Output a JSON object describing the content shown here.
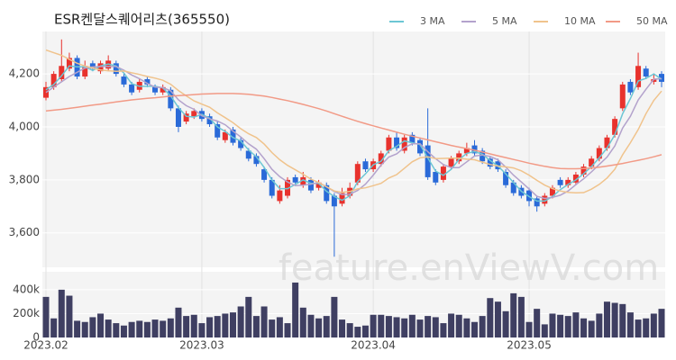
{
  "chart_data": [
    {
      "type": "candlestick",
      "title": "ESR켄달스퀘어리츠(365550)",
      "watermark": "feature.enViewV.com",
      "categories": [
        "2023.02",
        null,
        null,
        null,
        null,
        null,
        null,
        null,
        null,
        null,
        null,
        null,
        null,
        null,
        null,
        null,
        null,
        null,
        null,
        null,
        "2023.03",
        null,
        null,
        null,
        null,
        null,
        null,
        null,
        null,
        null,
        null,
        null,
        null,
        null,
        null,
        null,
        null,
        null,
        null,
        null,
        null,
        null,
        "2023.04",
        null,
        null,
        null,
        null,
        null,
        null,
        null,
        null,
        null,
        null,
        null,
        null,
        null,
        null,
        null,
        null,
        null,
        null,
        null,
        "2023.05",
        null,
        null,
        null,
        null,
        null,
        null,
        null,
        null,
        null,
        null,
        null,
        null,
        null,
        null,
        null,
        null,
        null
      ],
      "open": [
        4110,
        4150,
        4180,
        4220,
        4260,
        4190,
        4240,
        4210,
        4220,
        4240,
        4190,
        4160,
        4140,
        4180,
        4150,
        4130,
        4140,
        4070,
        4020,
        4040,
        4060,
        4040,
        4010,
        3950,
        3990,
        3950,
        3910,
        3890,
        3840,
        3800,
        3720,
        3740,
        3810,
        3780,
        3800,
        3770,
        3780,
        3740,
        3710,
        3740,
        3790,
        3870,
        3840,
        3860,
        3910,
        3960,
        3910,
        3970,
        3950,
        3930,
        3830,
        3800,
        3850,
        3870,
        3900,
        3930,
        3910,
        3880,
        3870,
        3830,
        3790,
        3770,
        3760,
        3730,
        3710,
        3740,
        3800,
        3780,
        3790,
        3820,
        3850,
        3880,
        3920,
        3970,
        4070,
        4170,
        4150,
        4220,
        4170,
        4200
      ],
      "high": [
        4170,
        4210,
        4330,
        4280,
        4270,
        4250,
        4250,
        4250,
        4270,
        4250,
        4200,
        4170,
        4180,
        4190,
        4160,
        4160,
        4150,
        4080,
        4060,
        4070,
        4070,
        4050,
        4020,
        3990,
        4000,
        3960,
        3920,
        3900,
        3850,
        3810,
        3780,
        3810,
        3820,
        3830,
        3810,
        3800,
        3790,
        3750,
        3770,
        3790,
        3870,
        3880,
        3880,
        3910,
        3970,
        3980,
        3970,
        3980,
        3960,
        4070,
        3840,
        3860,
        3890,
        3910,
        3940,
        3950,
        3920,
        3890,
        3880,
        3840,
        3800,
        3780,
        3770,
        3740,
        3750,
        3780,
        3810,
        3810,
        3830,
        3860,
        3890,
        3930,
        3970,
        4040,
        4170,
        4180,
        4280,
        4230,
        4200,
        4210
      ],
      "low": [
        4100,
        4140,
        4170,
        4210,
        4180,
        4180,
        4210,
        4200,
        4210,
        4190,
        4150,
        4120,
        4130,
        4150,
        4120,
        4120,
        4060,
        3980,
        4010,
        4030,
        4020,
        4000,
        3950,
        3940,
        3930,
        3910,
        3870,
        3850,
        3790,
        3730,
        3710,
        3730,
        3780,
        3770,
        3750,
        3760,
        3710,
        3510,
        3700,
        3730,
        3780,
        3830,
        3830,
        3850,
        3900,
        3910,
        3900,
        3930,
        3890,
        3800,
        3780,
        3790,
        3840,
        3860,
        3890,
        3890,
        3860,
        3840,
        3830,
        3770,
        3740,
        3730,
        3700,
        3680,
        3700,
        3730,
        3770,
        3770,
        3780,
        3810,
        3840,
        3870,
        3910,
        3960,
        4060,
        4120,
        4140,
        4180,
        4160,
        4150
      ],
      "close": [
        4150,
        4200,
        4230,
        4260,
        4190,
        4230,
        4220,
        4240,
        4250,
        4200,
        4160,
        4130,
        4170,
        4160,
        4130,
        4150,
        4070,
        4000,
        4050,
        4060,
        4030,
        4010,
        3960,
        3980,
        3940,
        3920,
        3880,
        3860,
        3800,
        3740,
        3760,
        3800,
        3790,
        3810,
        3760,
        3790,
        3720,
        3700,
        3750,
        3770,
        3860,
        3840,
        3870,
        3900,
        3960,
        3920,
        3960,
        3940,
        3900,
        3810,
        3790,
        3850,
        3880,
        3900,
        3920,
        3900,
        3870,
        3850,
        3840,
        3780,
        3750,
        3740,
        3720,
        3700,
        3740,
        3770,
        3780,
        3800,
        3820,
        3850,
        3880,
        3920,
        3960,
        4030,
        4160,
        4130,
        4230,
        4190,
        4180,
        4170
      ],
      "up_color": "#e8322d",
      "down_color": "#2a6ad8",
      "series": [
        {
          "name": "3 MA",
          "color": "#6cc6d4",
          "values": [
            4140,
            4160,
            4193,
            4230,
            4227,
            4227,
            4213,
            4230,
            4237,
            4230,
            4203,
            4163,
            4153,
            4153,
            4153,
            4147,
            4117,
            4073,
            4040,
            4037,
            4047,
            4033,
            4000,
            3983,
            3960,
            3947,
            3913,
            3887,
            3847,
            3800,
            3767,
            3767,
            3783,
            3800,
            3787,
            3787,
            3757,
            3737,
            3723,
            3740,
            3793,
            3823,
            3857,
            3870,
            3910,
            3927,
            3947,
            3940,
            3933,
            3883,
            3833,
            3817,
            3840,
            3877,
            3900,
            3907,
            3897,
            3873,
            3853,
            3823,
            3790,
            3757,
            3737,
            3720,
            3720,
            3737,
            3763,
            3783,
            3800,
            3823,
            3850,
            3883,
            3920,
            3970,
            4050,
            4107,
            4173,
            4183,
            4200,
            4180
          ]
        },
        {
          "name": "5 MA",
          "color": "#b3a2cc",
          "values": [
            4130,
            4150,
            4170,
            4190,
            4206,
            4222,
            4226,
            4228,
            4228,
            4228,
            4214,
            4196,
            4182,
            4164,
            4150,
            4148,
            4136,
            4102,
            4080,
            4066,
            4042,
            4030,
            4022,
            4008,
            3984,
            3962,
            3936,
            3916,
            3880,
            3840,
            3812,
            3792,
            3778,
            3780,
            3784,
            3790,
            3774,
            3756,
            3744,
            3746,
            3760,
            3784,
            3818,
            3856,
            3886,
            3898,
            3922,
            3936,
            3936,
            3906,
            3880,
            3858,
            3846,
            3846,
            3868,
            3890,
            3894,
            3888,
            3876,
            3848,
            3818,
            3792,
            3766,
            3738,
            3730,
            3734,
            3742,
            3758,
            3782,
            3804,
            3830,
            3858,
            3886,
            3928,
            3996,
            4040,
            4102,
            4142,
            4180,
            4182
          ]
        },
        {
          "name": "10 MA",
          "color": "#f0c38c",
          "values": [
            4290,
            4280,
            4270,
            4255,
            4240,
            4230,
            4222,
            4215,
            4212,
            4210,
            4211,
            4204,
            4198,
            4190,
            4184,
            4176,
            4161,
            4137,
            4117,
            4098,
            4086,
            4074,
            4053,
            4035,
            4016,
            3993,
            3974,
            3960,
            3935,
            3903,
            3876,
            3855,
            3838,
            3821,
            3803,
            3790,
            3774,
            3758,
            3753,
            3756,
            3766,
            3770,
            3778,
            3787,
            3807,
            3820,
            3844,
            3868,
            3883,
            3887,
            3880,
            3881,
            3882,
            3882,
            3878,
            3876,
            3867,
            3858,
            3852,
            3849,
            3845,
            3834,
            3818,
            3798,
            3780,
            3767,
            3758,
            3753,
            3751,
            3752,
            3765,
            3783,
            3807,
            3840,
            3895,
            3940,
            3990,
            4050,
            4100,
            4135
          ]
        },
        {
          "name": "50 MA",
          "color": "#f29a86",
          "values": [
            4060,
            4063,
            4066,
            4070,
            4074,
            4078,
            4082,
            4086,
            4090,
            4094,
            4098,
            4102,
            4105,
            4108,
            4110,
            4113,
            4116,
            4118,
            4120,
            4122,
            4124,
            4125,
            4126,
            4126,
            4126,
            4125,
            4123,
            4120,
            4116,
            4111,
            4105,
            4099,
            4092,
            4085,
            4077,
            4069,
            4060,
            4050,
            4040,
            4030,
            4021,
            4012,
            4004,
            3996,
            3988,
            3980,
            3972,
            3965,
            3958,
            3951,
            3944,
            3937,
            3930,
            3924,
            3918,
            3912,
            3905,
            3898,
            3891,
            3884,
            3877,
            3870,
            3863,
            3857,
            3851,
            3846,
            3843,
            3842,
            3842,
            3843,
            3845,
            3848,
            3852,
            3857,
            3862,
            3868,
            3874,
            3880,
            3887,
            3895
          ]
        }
      ],
      "ylim": [
        3470,
        4360
      ],
      "yticks": [
        {
          "value": 3600,
          "label": "3,600"
        },
        {
          "value": 3800,
          "label": "3,800"
        },
        {
          "value": 4000,
          "label": "4,000"
        },
        {
          "value": 4200,
          "label": "4,200"
        }
      ],
      "grid": true
    },
    {
      "type": "bar",
      "values": [
        340000,
        160000,
        400000,
        350000,
        140000,
        130000,
        170000,
        200000,
        150000,
        120000,
        100000,
        130000,
        140000,
        130000,
        150000,
        140000,
        160000,
        250000,
        180000,
        190000,
        120000,
        170000,
        180000,
        200000,
        210000,
        260000,
        340000,
        180000,
        260000,
        150000,
        170000,
        120000,
        460000,
        250000,
        190000,
        160000,
        180000,
        340000,
        150000,
        120000,
        90000,
        100000,
        190000,
        190000,
        180000,
        170000,
        160000,
        190000,
        150000,
        180000,
        170000,
        120000,
        200000,
        190000,
        160000,
        130000,
        180000,
        330000,
        300000,
        220000,
        370000,
        340000,
        130000,
        240000,
        110000,
        200000,
        190000,
        180000,
        210000,
        160000,
        140000,
        200000,
        300000,
        290000,
        280000,
        210000,
        150000,
        160000,
        200000,
        240000
      ],
      "color": "#3f3f62",
      "ylim": [
        0,
        550000
      ],
      "yticks": [
        0,
        {
          "value": 200000,
          "label": "200k"
        },
        {
          "value": 400000,
          "label": "400k"
        }
      ],
      "grid": true
    }
  ]
}
